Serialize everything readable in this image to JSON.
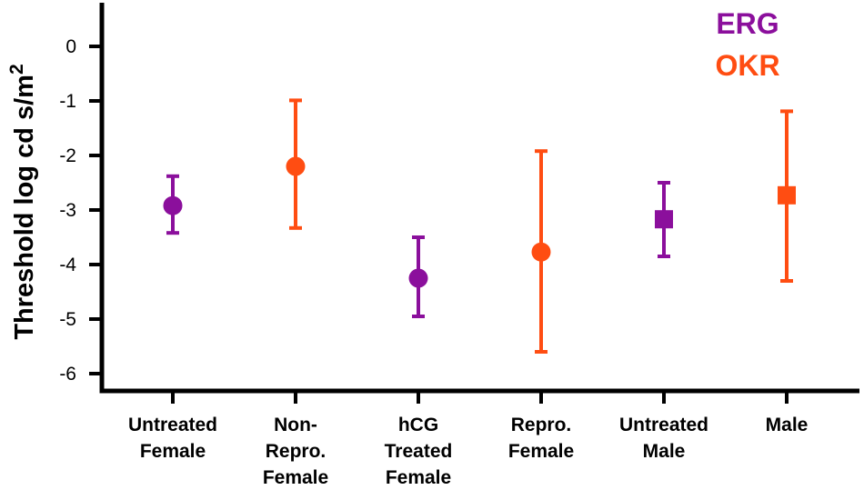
{
  "chart_data": {
    "type": "scatter",
    "title": "",
    "xlabel": "",
    "ylabel": "Threshold log cd s/m",
    "ylabel_superscript": "2",
    "ylim": [
      -6.3,
      0.6
    ],
    "yticks": [
      "0",
      "-1",
      "-2",
      "-3",
      "-4",
      "-5",
      "-6"
    ],
    "categories": [
      [
        "Untreated",
        "Female"
      ],
      [
        "Non-",
        "Repro.",
        "Female"
      ],
      [
        "hCG",
        "Treated",
        "Female"
      ],
      [
        "Repro.",
        "Female"
      ],
      [
        "Untreated",
        "Male"
      ],
      [
        "Male"
      ]
    ],
    "legend": [
      {
        "name": "ERG",
        "color": "#8B0F9C"
      },
      {
        "name": "OKR",
        "color": "#FF4D12"
      }
    ],
    "points": [
      {
        "category": 0,
        "series": "ERG",
        "marker": "circle",
        "value": -2.92,
        "low": -3.42,
        "high": -2.38
      },
      {
        "category": 1,
        "series": "OKR",
        "marker": "circle",
        "value": -2.2,
        "low": -3.33,
        "high": -0.99
      },
      {
        "category": 2,
        "series": "ERG",
        "marker": "circle",
        "value": -4.25,
        "low": -4.95,
        "high": -3.5
      },
      {
        "category": 3,
        "series": "OKR",
        "marker": "circle",
        "value": -3.77,
        "low": -5.6,
        "high": -1.92
      },
      {
        "category": 4,
        "series": "ERG",
        "marker": "square",
        "value": -3.17,
        "low": -3.85,
        "high": -2.5
      },
      {
        "category": 5,
        "series": "OKR",
        "marker": "square",
        "value": -2.73,
        "low": -4.3,
        "high": -1.19
      }
    ]
  }
}
